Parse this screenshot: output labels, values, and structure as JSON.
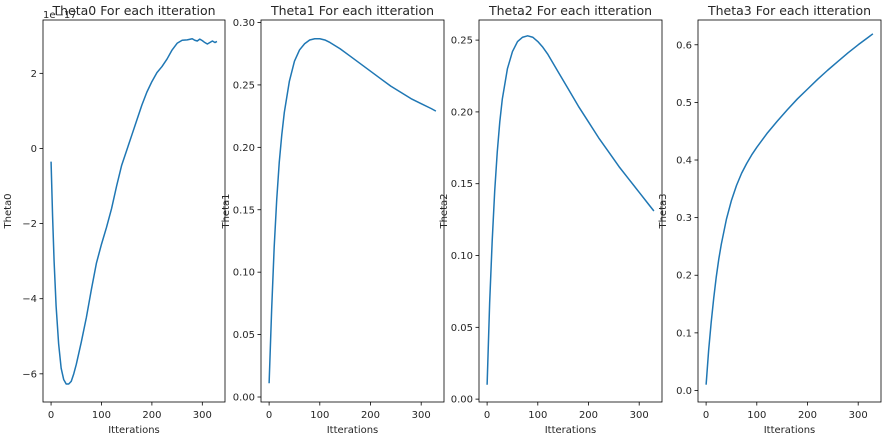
{
  "chart_data": [
    {
      "type": "line",
      "title": "Theta0 For each itteration",
      "xlabel": "Itterations",
      "ylabel": "Theta0",
      "offset_label": "1e−17",
      "xlim": [
        -16,
        345
      ],
      "ylim": [
        -6.75,
        3.42
      ],
      "xticks": [
        0,
        100,
        200,
        300
      ],
      "xtick_labels": [
        "0",
        "100",
        "200",
        "300"
      ],
      "yticks": [
        -6,
        -4,
        -2,
        0,
        2
      ],
      "ytick_labels": [
        "−6",
        "−4",
        "−2",
        "0",
        "2"
      ],
      "grid": false,
      "color": "#1f77b4",
      "x": [
        0,
        3,
        6,
        10,
        15,
        20,
        25,
        30,
        35,
        40,
        45,
        50,
        55,
        60,
        70,
        80,
        90,
        100,
        110,
        120,
        130,
        140,
        150,
        160,
        170,
        180,
        190,
        200,
        210,
        220,
        230,
        240,
        250,
        260,
        270,
        280,
        285,
        290,
        295,
        300,
        305,
        310,
        315,
        320,
        325,
        329
      ],
      "y": [
        -0.35,
        -1.8,
        -3.0,
        -4.2,
        -5.2,
        -5.85,
        -6.15,
        -6.27,
        -6.27,
        -6.2,
        -6.0,
        -5.75,
        -5.45,
        -5.15,
        -4.5,
        -3.75,
        -3.05,
        -2.55,
        -2.1,
        -1.6,
        -1.0,
        -0.45,
        -0.05,
        0.35,
        0.75,
        1.15,
        1.5,
        1.78,
        2.02,
        2.18,
        2.38,
        2.62,
        2.8,
        2.88,
        2.89,
        2.92,
        2.88,
        2.86,
        2.91,
        2.87,
        2.82,
        2.78,
        2.82,
        2.86,
        2.82,
        2.85
      ]
    },
    {
      "type": "line",
      "title": "Theta1 For each itteration",
      "xlabel": "Itterations",
      "ylabel": "Theta1",
      "xlim": [
        -16,
        345
      ],
      "ylim": [
        -0.004,
        0.302
      ],
      "xticks": [
        0,
        100,
        200,
        300
      ],
      "xtick_labels": [
        "0",
        "100",
        "200",
        "300"
      ],
      "yticks": [
        0.0,
        0.05,
        0.1,
        0.15,
        0.2,
        0.25,
        0.3
      ],
      "ytick_labels": [
        "0.00",
        "0.05",
        "0.10",
        "0.15",
        "0.20",
        "0.25",
        "0.30"
      ],
      "grid": false,
      "color": "#1f77b4",
      "x": [
        0,
        5,
        10,
        15,
        20,
        25,
        30,
        40,
        50,
        60,
        70,
        80,
        90,
        100,
        110,
        120,
        140,
        160,
        180,
        200,
        220,
        240,
        260,
        280,
        300,
        320,
        329
      ],
      "y": [
        0.011,
        0.07,
        0.12,
        0.158,
        0.188,
        0.21,
        0.228,
        0.253,
        0.269,
        0.278,
        0.283,
        0.286,
        0.287,
        0.287,
        0.286,
        0.284,
        0.279,
        0.273,
        0.267,
        0.261,
        0.255,
        0.249,
        0.244,
        0.239,
        0.235,
        0.231,
        0.229
      ]
    },
    {
      "type": "line",
      "title": "Theta2 For each itteration",
      "xlabel": "Itterations",
      "ylabel": "Theta2",
      "xlim": [
        -16,
        345
      ],
      "ylim": [
        -0.002,
        0.264
      ],
      "xticks": [
        0,
        100,
        200,
        300
      ],
      "xtick_labels": [
        "0",
        "100",
        "200",
        "300"
      ],
      "yticks": [
        0.0,
        0.05,
        0.1,
        0.15,
        0.2,
        0.25
      ],
      "ytick_labels": [
        "0.00",
        "0.05",
        "0.10",
        "0.15",
        "0.20",
        "0.25"
      ],
      "grid": false,
      "color": "#1f77b4",
      "x": [
        0,
        5,
        10,
        15,
        20,
        25,
        30,
        40,
        50,
        60,
        70,
        80,
        90,
        100,
        110,
        120,
        140,
        160,
        180,
        200,
        220,
        240,
        260,
        280,
        300,
        320,
        329
      ],
      "y": [
        0.01,
        0.067,
        0.11,
        0.145,
        0.172,
        0.193,
        0.209,
        0.23,
        0.242,
        0.249,
        0.252,
        0.253,
        0.252,
        0.249,
        0.245,
        0.24,
        0.228,
        0.216,
        0.204,
        0.193,
        0.182,
        0.172,
        0.162,
        0.153,
        0.144,
        0.135,
        0.131
      ]
    },
    {
      "type": "line",
      "title": "Theta3 For each itteration",
      "xlabel": "Itterations",
      "ylabel": "Theta3",
      "xlim": [
        -16,
        345
      ],
      "ylim": [
        -0.02,
        0.643
      ],
      "xticks": [
        0,
        100,
        200,
        300
      ],
      "xtick_labels": [
        "0",
        "100",
        "200",
        "300"
      ],
      "yticks": [
        0.0,
        0.1,
        0.2,
        0.3,
        0.4,
        0.5,
        0.6
      ],
      "ytick_labels": [
        "0.0",
        "0.1",
        "0.2",
        "0.3",
        "0.4",
        "0.5",
        "0.6"
      ],
      "grid": false,
      "color": "#1f77b4",
      "x": [
        0,
        5,
        10,
        15,
        20,
        25,
        30,
        40,
        50,
        60,
        70,
        80,
        90,
        100,
        120,
        140,
        160,
        180,
        200,
        220,
        240,
        260,
        280,
        300,
        320,
        329
      ],
      "y": [
        0.01,
        0.07,
        0.118,
        0.16,
        0.197,
        0.228,
        0.254,
        0.297,
        0.33,
        0.356,
        0.377,
        0.394,
        0.409,
        0.422,
        0.446,
        0.467,
        0.487,
        0.506,
        0.523,
        0.54,
        0.556,
        0.571,
        0.586,
        0.6,
        0.613,
        0.619
      ]
    }
  ]
}
